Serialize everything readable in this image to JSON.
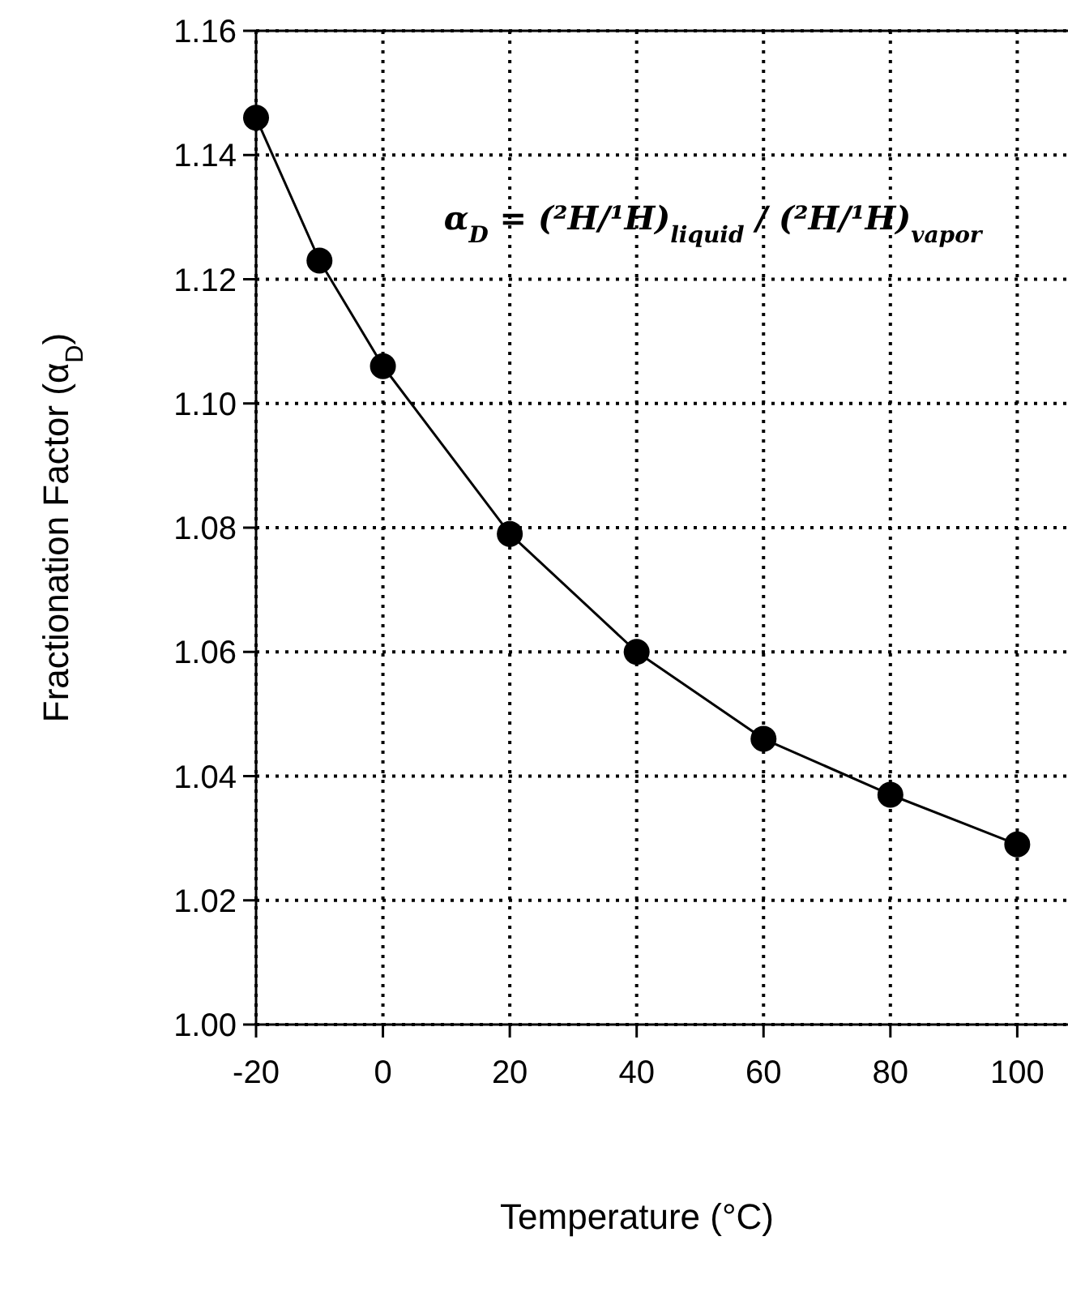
{
  "chart_data": {
    "type": "line",
    "xlabel": "Temperature (°C)",
    "ylabel": "Fractionation Factor (α$_{D}$)",
    "x": [
      -20,
      -10,
      0,
      20,
      40,
      60,
      80,
      100
    ],
    "series": [
      {
        "color": "#000000",
        "values": [
          1.146,
          1.123,
          1.106,
          1.079,
          1.06,
          1.046,
          1.037,
          1.029
        ]
      }
    ],
    "xlim": [
      -20,
      108
    ],
    "xticks": [
      -20,
      0,
      20,
      40,
      60,
      80,
      100
    ],
    "ylim": [
      1.0,
      1.16
    ],
    "yticks": [
      {
        "value": 1.0,
        "label": "1.00"
      },
      {
        "value": 1.02,
        "label": "1.02"
      },
      {
        "value": 1.04,
        "label": "1.04"
      },
      {
        "value": 1.06,
        "label": "1.06"
      },
      {
        "value": 1.08,
        "label": "1.08"
      },
      {
        "value": 1.1,
        "label": "1.10"
      },
      {
        "value": 1.12,
        "label": "1.12"
      },
      {
        "value": 1.14,
        "label": "1.14"
      },
      {
        "value": 1.16,
        "label": "1.16"
      }
    ],
    "grid": true,
    "marker": "circle",
    "line_style": "solid",
    "annotations": [
      "α$_{D}$ = (²H/¹H)$_{liquid}$ / (²H/¹H)$_{vapor}$"
    ]
  }
}
